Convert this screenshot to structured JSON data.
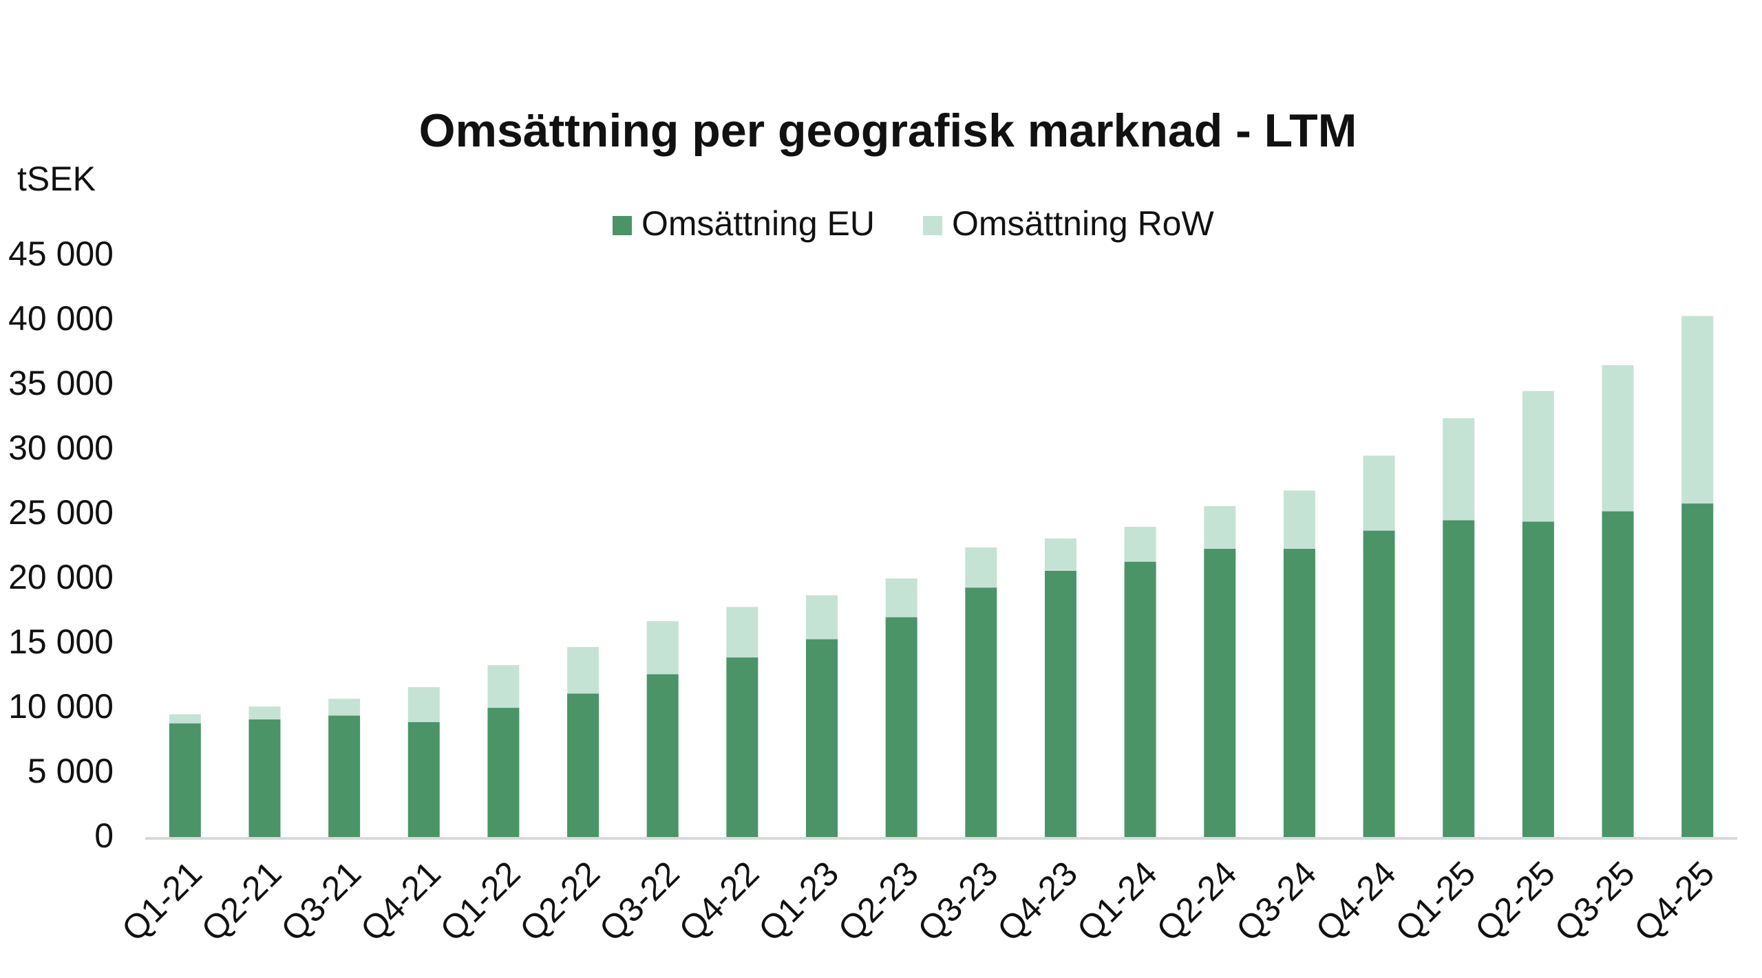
{
  "chart_data": {
    "type": "stacked_bar",
    "title": "Omsättning per geografisk marknad - LTM",
    "y_label": "tSEK",
    "categories": [
      "Q1-21",
      "Q2-21",
      "Q3-21",
      "Q4-21",
      "Q1-22",
      "Q2-22",
      "Q3-22",
      "Q4-22",
      "Q1-23",
      "Q2-23",
      "Q3-23",
      "Q4-23",
      "Q1-24",
      "Q2-24",
      "Q3-24",
      "Q4-24",
      "Q1-25",
      "Q2-25",
      "Q3-25",
      "Q4-25"
    ],
    "series": [
      {
        "name": "Omsättning EU",
        "color": "#4a9468",
        "values": [
          8900,
          9200,
          9500,
          9000,
          10100,
          11200,
          12700,
          14000,
          15400,
          17100,
          19400,
          20700,
          21400,
          22400,
          22400,
          23800,
          24600,
          24500,
          25300,
          25900
        ]
      },
      {
        "name": "Omsättning RoW",
        "color": "#c5e3d4",
        "values": [
          700,
          1000,
          1300,
          2700,
          3300,
          3600,
          4100,
          3900,
          3400,
          3000,
          3100,
          2500,
          2700,
          3300,
          4500,
          5800,
          7900,
          10100,
          11300,
          14500
        ]
      }
    ],
    "ylim": [
      0,
      45000
    ],
    "yticks": [
      0,
      {
        "value": 5000,
        "label": "5 000"
      },
      {
        "value": 10000,
        "label": "10 000"
      },
      {
        "value": 15000,
        "label": "15 000"
      },
      {
        "value": 20000,
        "label": "20 000"
      },
      {
        "value": 25000,
        "label": "25 000"
      },
      {
        "value": 30000,
        "label": "30 000"
      },
      {
        "value": 35000,
        "label": "35 000"
      },
      {
        "value": 40000,
        "label": "40 000"
      },
      {
        "value": 45000,
        "label": "45 000"
      }
    ],
    "grid": false,
    "legend": "top"
  }
}
